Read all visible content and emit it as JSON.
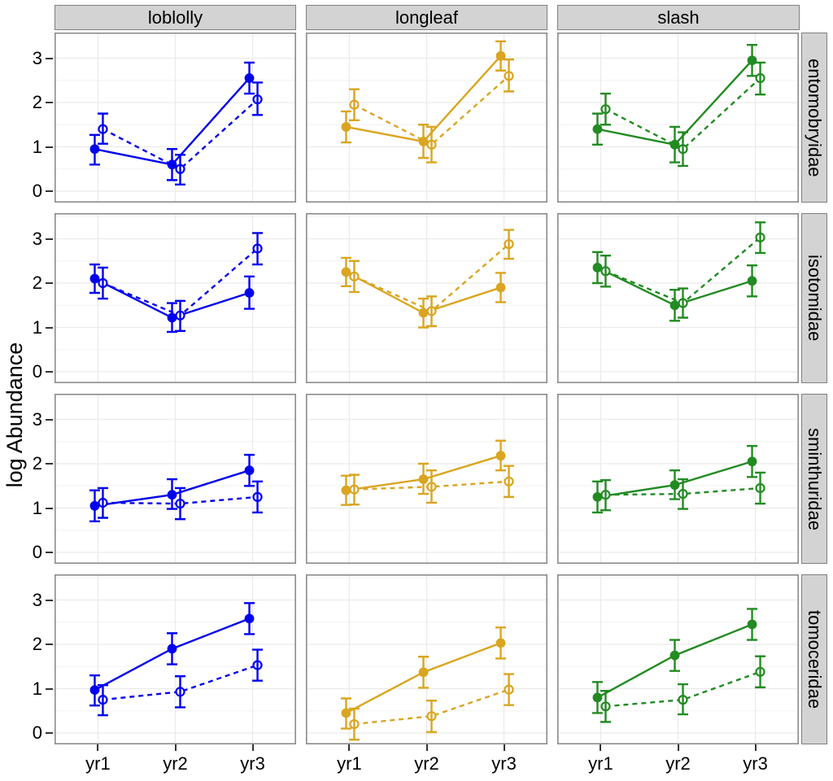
{
  "chart_data": {
    "type": "line",
    "title": "",
    "ylabel": "log Abundance",
    "xlabel": "",
    "x_categories": [
      "yr1",
      "yr2",
      "yr3"
    ],
    "y_ticks": [
      0,
      1,
      2,
      3
    ],
    "y_minor_ticks": [
      0.5,
      1.5,
      2.5,
      3.5
    ],
    "ylim": [
      -0.26,
      3.58
    ],
    "grid": true,
    "legend_position": "none",
    "facet_columns": [
      "loblolly",
      "longleaf",
      "slash"
    ],
    "facet_rows": [
      "entomobryidae",
      "isotomidae",
      "sminthuridae",
      "tomoceridae"
    ],
    "column_colors": {
      "loblolly": "#0000EE",
      "longleaf": "#DAA520",
      "slash": "#228B22"
    },
    "series_styles": [
      {
        "name": "series-solid",
        "line": "solid",
        "marker": "filled-circle"
      },
      {
        "name": "series-dashed",
        "line": "dashed",
        "marker": "open-circle"
      }
    ],
    "panels": [
      {
        "row": "entomobryidae",
        "col": "loblolly",
        "series": [
          {
            "style": "solid",
            "y": [
              0.95,
              0.6,
              2.55
            ],
            "lo": [
              0.6,
              0.25,
              2.2
            ],
            "hi": [
              1.27,
              0.95,
              2.9
            ]
          },
          {
            "style": "dashed",
            "y": [
              1.4,
              0.5,
              2.07
            ],
            "lo": [
              1.07,
              0.15,
              1.72
            ],
            "hi": [
              1.75,
              0.82,
              2.45
            ]
          }
        ]
      },
      {
        "row": "entomobryidae",
        "col": "longleaf",
        "series": [
          {
            "style": "solid",
            "y": [
              1.45,
              1.12,
              3.05
            ],
            "lo": [
              1.1,
              0.75,
              2.72
            ],
            "hi": [
              1.8,
              1.5,
              3.38
            ]
          },
          {
            "style": "dashed",
            "y": [
              1.95,
              1.05,
              2.6
            ],
            "lo": [
              1.6,
              0.65,
              2.25
            ],
            "hi": [
              2.3,
              1.45,
              2.97
            ]
          }
        ]
      },
      {
        "row": "entomobryidae",
        "col": "slash",
        "series": [
          {
            "style": "solid",
            "y": [
              1.4,
              1.05,
              2.95
            ],
            "lo": [
              1.05,
              0.65,
              2.6
            ],
            "hi": [
              1.75,
              1.45,
              3.3
            ]
          },
          {
            "style": "dashed",
            "y": [
              1.85,
              0.95,
              2.55
            ],
            "lo": [
              1.5,
              0.57,
              2.18
            ],
            "hi": [
              2.2,
              1.33,
              2.9
            ]
          }
        ]
      },
      {
        "row": "isotomidae",
        "col": "loblolly",
        "series": [
          {
            "style": "solid",
            "y": [
              2.1,
              1.22,
              1.78
            ],
            "lo": [
              1.78,
              0.9,
              1.42
            ],
            "hi": [
              2.42,
              1.55,
              2.15
            ]
          },
          {
            "style": "dashed",
            "y": [
              2.0,
              1.27,
              2.78
            ],
            "lo": [
              1.65,
              0.92,
              2.42
            ],
            "hi": [
              2.35,
              1.6,
              3.13
            ]
          }
        ]
      },
      {
        "row": "isotomidae",
        "col": "longleaf",
        "series": [
          {
            "style": "solid",
            "y": [
              2.25,
              1.33,
              1.9
            ],
            "lo": [
              1.93,
              1.0,
              1.57
            ],
            "hi": [
              2.57,
              1.65,
              2.23
            ]
          },
          {
            "style": "dashed",
            "y": [
              2.15,
              1.37,
              2.88
            ],
            "lo": [
              1.8,
              1.03,
              2.55
            ],
            "hi": [
              2.5,
              1.7,
              3.2
            ]
          }
        ]
      },
      {
        "row": "isotomidae",
        "col": "slash",
        "series": [
          {
            "style": "solid",
            "y": [
              2.35,
              1.5,
              2.05
            ],
            "lo": [
              2.0,
              1.15,
              1.7
            ],
            "hi": [
              2.7,
              1.85,
              2.4
            ]
          },
          {
            "style": "dashed",
            "y": [
              2.27,
              1.55,
              3.03
            ],
            "lo": [
              1.92,
              1.22,
              2.68
            ],
            "hi": [
              2.62,
              1.88,
              3.37
            ]
          }
        ]
      },
      {
        "row": "sminthuridae",
        "col": "loblolly",
        "series": [
          {
            "style": "solid",
            "y": [
              1.05,
              1.3,
              1.85
            ],
            "lo": [
              0.7,
              0.98,
              1.5
            ],
            "hi": [
              1.4,
              1.65,
              2.2
            ]
          },
          {
            "style": "dashed",
            "y": [
              1.12,
              1.1,
              1.25
            ],
            "lo": [
              0.78,
              0.75,
              0.9
            ],
            "hi": [
              1.45,
              1.45,
              1.6
            ]
          }
        ]
      },
      {
        "row": "sminthuridae",
        "col": "longleaf",
        "series": [
          {
            "style": "solid",
            "y": [
              1.4,
              1.65,
              2.18
            ],
            "lo": [
              1.07,
              1.32,
              1.85
            ],
            "hi": [
              1.73,
              2.0,
              2.52
            ]
          },
          {
            "style": "dashed",
            "y": [
              1.42,
              1.48,
              1.6
            ],
            "lo": [
              1.08,
              1.12,
              1.25
            ],
            "hi": [
              1.75,
              1.85,
              1.95
            ]
          }
        ]
      },
      {
        "row": "sminthuridae",
        "col": "slash",
        "series": [
          {
            "style": "solid",
            "y": [
              1.25,
              1.52,
              2.05
            ],
            "lo": [
              0.9,
              1.2,
              1.7
            ],
            "hi": [
              1.6,
              1.85,
              2.4
            ]
          },
          {
            "style": "dashed",
            "y": [
              1.3,
              1.32,
              1.45
            ],
            "lo": [
              0.95,
              0.98,
              1.1
            ],
            "hi": [
              1.63,
              1.65,
              1.8
            ]
          }
        ]
      },
      {
        "row": "tomoceridae",
        "col": "loblolly",
        "series": [
          {
            "style": "solid",
            "y": [
              0.97,
              1.9,
              2.58
            ],
            "lo": [
              0.62,
              1.55,
              2.23
            ],
            "hi": [
              1.3,
              2.25,
              2.93
            ]
          },
          {
            "style": "dashed",
            "y": [
              0.75,
              0.93,
              1.53
            ],
            "lo": [
              0.4,
              0.58,
              1.18
            ],
            "hi": [
              1.08,
              1.28,
              1.88
            ]
          }
        ]
      },
      {
        "row": "tomoceridae",
        "col": "longleaf",
        "series": [
          {
            "style": "solid",
            "y": [
              0.45,
              1.37,
              2.03
            ],
            "lo": [
              0.1,
              1.02,
              1.68
            ],
            "hi": [
              0.78,
              1.72,
              2.38
            ]
          },
          {
            "style": "dashed",
            "y": [
              0.2,
              0.38,
              0.98
            ],
            "lo": [
              -0.15,
              0.02,
              0.63
            ],
            "hi": [
              0.55,
              0.73,
              1.33
            ]
          }
        ]
      },
      {
        "row": "tomoceridae",
        "col": "slash",
        "series": [
          {
            "style": "solid",
            "y": [
              0.8,
              1.75,
              2.45
            ],
            "lo": [
              0.45,
              1.4,
              2.1
            ],
            "hi": [
              1.15,
              2.1,
              2.8
            ]
          },
          {
            "style": "dashed",
            "y": [
              0.6,
              0.75,
              1.38
            ],
            "lo": [
              0.25,
              0.42,
              1.03
            ],
            "hi": [
              0.95,
              1.1,
              1.73
            ]
          }
        ]
      }
    ]
  }
}
